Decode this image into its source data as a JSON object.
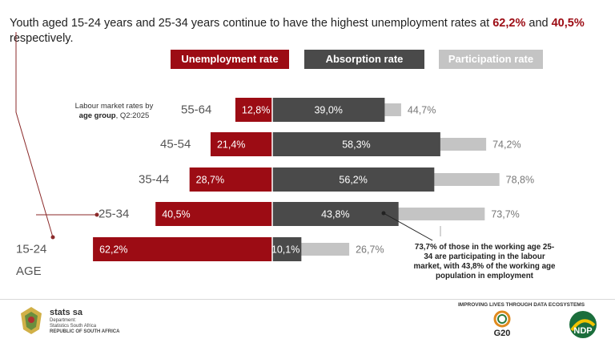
{
  "headline": {
    "text_before": "Youth aged 15-24 years and 25-34 years continue to have the highest unemployment rates at ",
    "value1": "62,2%",
    "text_mid": " and ",
    "value2": "40,5%",
    "text_after": " respectively."
  },
  "legend": {
    "unemployment": "Unemployment rate",
    "absorption": "Absorption rate",
    "participation": "Participation rate"
  },
  "subtitle": {
    "line1": "Labour market rates by",
    "bold": "age group",
    "rest": ", Q2:2025"
  },
  "age_axis_label": "AGE",
  "annotation": "73,7% of those in the working age  25-34 are participating in the labour market, with 43,8% of  the working age population in employment",
  "footer": {
    "org_name": "stats sa",
    "dept": "Department:",
    "dept_name": "Statistics South Africa",
    "country": "REPUBLIC OF SOUTH AFRICA",
    "tagline": "IMPROVING LIVES THROUGH DATA ECOSYSTEMS",
    "g20": "G20",
    "ndp": "NDP"
  },
  "colors": {
    "unemployment": "#9c0c14",
    "absorption": "#4a4a4a",
    "participation": "#c4c4c4"
  },
  "chart_data": {
    "type": "bar",
    "orientation": "horizontal",
    "categories": [
      "55-64",
      "45-54",
      "35-44",
      "25-34",
      "15-24"
    ],
    "series": [
      {
        "name": "Unemployment rate",
        "values": [
          12.8,
          21.4,
          28.7,
          40.5,
          62.2
        ],
        "labels": [
          "12,8%",
          "21,4%",
          "28,7%",
          "40,5%",
          "62,2%"
        ]
      },
      {
        "name": "Absorption rate",
        "values": [
          39.0,
          58.3,
          56.2,
          43.8,
          10.1
        ],
        "labels": [
          "39,0%",
          "58,3%",
          "56,2%",
          "43,8%",
          "10,1%"
        ]
      },
      {
        "name": "Participation rate",
        "values": [
          44.7,
          74.2,
          78.8,
          73.7,
          26.7
        ],
        "labels": [
          "44,7%",
          "74,2%",
          "78,8%",
          "73,7%",
          "26,7%"
        ]
      }
    ]
  }
}
